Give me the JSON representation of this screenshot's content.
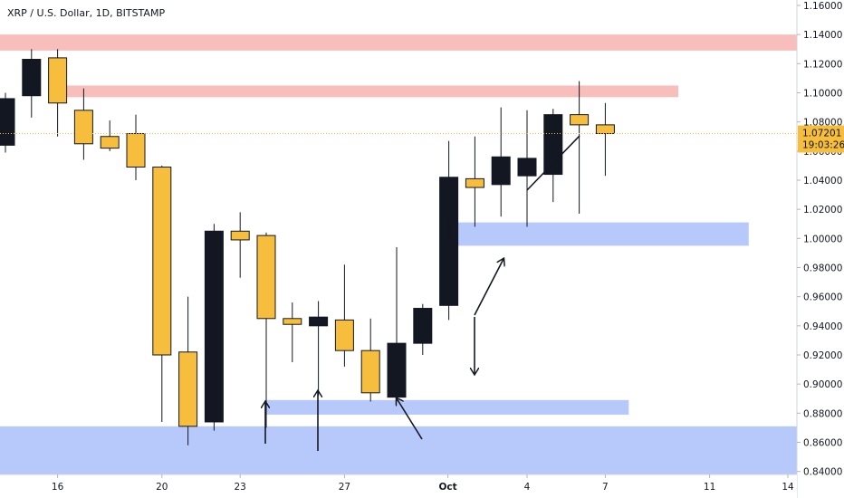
{
  "header": {
    "title": "XRP / U.S. Dollar, 1D, BITSTAMP"
  },
  "colors": {
    "up": "#131722",
    "down": "#f6be3c",
    "zone_red": "#f8bbb8",
    "zone_blue": "#9fb6f8",
    "price_label": "#f6be3c"
  },
  "price_label": {
    "value": "1.07201",
    "timer": "19:03:26"
  },
  "chart_data": {
    "type": "candlestick",
    "title": "XRP / U.S. Dollar, 1D, BITSTAMP",
    "ylim": [
      0.82,
      1.17
    ],
    "y_ticks": [
      "1.16000",
      "1.14000",
      "1.12000",
      "1.10000",
      "1.08000",
      "1.06000",
      "1.04000",
      "1.02000",
      "1.00000",
      "0.98000",
      "0.96000",
      "0.94000",
      "0.92000",
      "0.90000",
      "0.88000",
      "0.86000",
      "0.84000"
    ],
    "x_ticks": [
      {
        "label": "16",
        "i": 2
      },
      {
        "label": "20",
        "i": 6
      },
      {
        "label": "23",
        "i": 9
      },
      {
        "label": "27",
        "i": 13
      },
      {
        "label": "Oct",
        "i": 17
      },
      {
        "label": "4",
        "i": 20
      },
      {
        "label": "7",
        "i": 23
      },
      {
        "label": "11",
        "i": 27
      },
      {
        "label": "14",
        "i": 30
      }
    ],
    "candles": [
      {
        "o": 1.064,
        "h": 1.1,
        "l": 1.059,
        "c": 1.096
      },
      {
        "o": 1.098,
        "h": 1.13,
        "l": 1.083,
        "c": 1.123
      },
      {
        "o": 1.124,
        "h": 1.13,
        "l": 1.07,
        "c": 1.093
      },
      {
        "o": 1.088,
        "h": 1.103,
        "l": 1.054,
        "c": 1.065
      },
      {
        "o": 1.07,
        "h": 1.081,
        "l": 1.06,
        "c": 1.062
      },
      {
        "o": 1.072,
        "h": 1.085,
        "l": 1.04,
        "c": 1.049
      },
      {
        "o": 1.049,
        "h": 1.05,
        "l": 0.874,
        "c": 0.92
      },
      {
        "o": 0.922,
        "h": 0.96,
        "l": 0.858,
        "c": 0.871
      },
      {
        "o": 0.874,
        "h": 1.01,
        "l": 0.868,
        "c": 1.005
      },
      {
        "o": 1.005,
        "h": 1.018,
        "l": 0.973,
        "c": 0.999
      },
      {
        "o": 1.002,
        "h": 1.004,
        "l": 0.87,
        "c": 0.945
      },
      {
        "o": 0.945,
        "h": 0.956,
        "l": 0.915,
        "c": 0.941
      },
      {
        "o": 0.94,
        "h": 0.957,
        "l": 0.892,
        "c": 0.946
      },
      {
        "o": 0.944,
        "h": 0.982,
        "l": 0.912,
        "c": 0.923
      },
      {
        "o": 0.923,
        "h": 0.945,
        "l": 0.888,
        "c": 0.894
      },
      {
        "o": 0.891,
        "h": 0.994,
        "l": 0.888,
        "c": 0.928
      },
      {
        "o": 0.928,
        "h": 0.955,
        "l": 0.92,
        "c": 0.952
      },
      {
        "o": 0.954,
        "h": 1.067,
        "l": 0.944,
        "c": 1.042
      },
      {
        "o": 1.041,
        "h": 1.07,
        "l": 1.008,
        "c": 1.035
      },
      {
        "o": 1.037,
        "h": 1.09,
        "l": 1.015,
        "c": 1.056
      },
      {
        "o": 1.043,
        "h": 1.088,
        "l": 1.008,
        "c": 1.055
      },
      {
        "o": 1.044,
        "h": 1.089,
        "l": 1.025,
        "c": 1.085
      },
      {
        "o": 1.085,
        "h": 1.108,
        "l": 1.017,
        "c": 1.078
      },
      {
        "o": 1.078,
        "h": 1.093,
        "l": 1.043,
        "c": 1.072
      }
    ],
    "zones": [
      {
        "color": "red",
        "from_i": -3,
        "to_i": 32,
        "y1": 1.129,
        "y2": 1.14
      },
      {
        "color": "red",
        "from_i": 2,
        "to_i": 25.8,
        "y1": 1.097,
        "y2": 1.105
      },
      {
        "color": "blue",
        "from_i": 17.2,
        "to_i": 28.5,
        "y1": 0.995,
        "y2": 1.011
      },
      {
        "color": "blue",
        "from_i": 10,
        "to_i": 23.9,
        "y1": 0.879,
        "y2": 0.889
      },
      {
        "color": "blue",
        "from_i": -3,
        "to_i": 32,
        "y1": 0.822,
        "y2": 0.871
      }
    ],
    "current_price": 1.07201,
    "grid": false
  }
}
